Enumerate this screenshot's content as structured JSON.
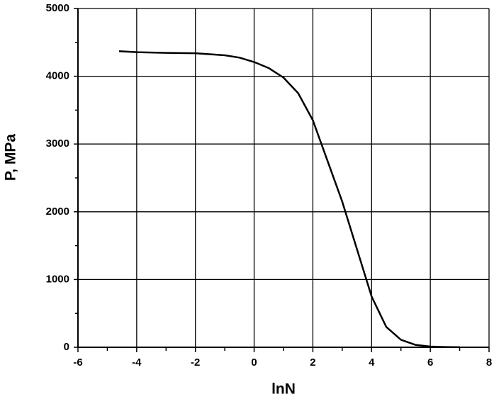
{
  "chart_data": {
    "type": "line",
    "x_label": "lnN",
    "y_label": "P, MPa",
    "x": [
      -4.6,
      -4,
      -3,
      -2,
      -1,
      -0.5,
      0,
      0.5,
      1,
      1.5,
      2,
      2.5,
      3,
      3.5,
      4,
      4.5,
      5,
      5.5,
      6,
      6.5,
      7
    ],
    "series": [
      {
        "color": "#000000",
        "values": [
          4370,
          4355,
          4345,
          4340,
          4310,
          4275,
          4210,
          4120,
          3980,
          3750,
          3350,
          2750,
          2150,
          1450,
          750,
          300,
          110,
          35,
          10,
          4,
          1
        ]
      }
    ],
    "xlim": [
      -6,
      8
    ],
    "xticks": [
      -6,
      -4,
      -2,
      0,
      2,
      4,
      6,
      8
    ],
    "xminorticks": [
      -5,
      -3,
      -1,
      1,
      3,
      5,
      7
    ],
    "ylim": [
      0,
      5000
    ],
    "yticks": [
      0,
      1000,
      2000,
      3000,
      4000,
      5000
    ],
    "yminorticks": [
      500,
      1500,
      2500,
      3500,
      4500
    ],
    "grid": true
  }
}
